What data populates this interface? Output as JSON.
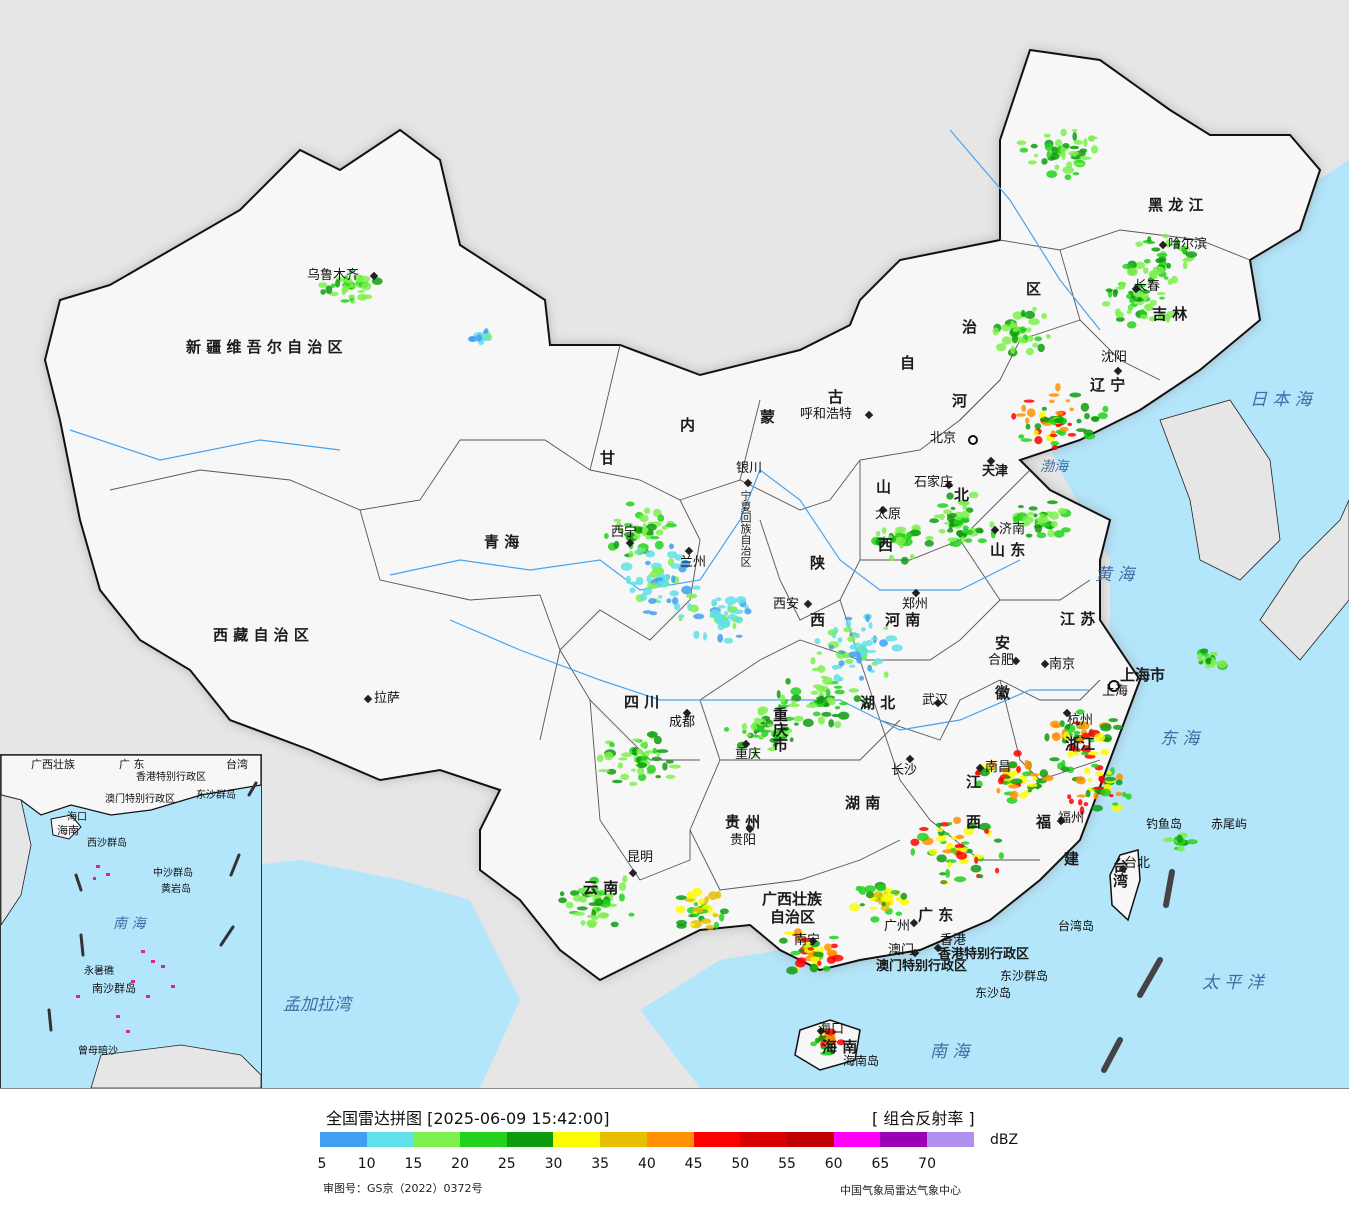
{
  "title": "全国雷达拼图 [2025-06-09 15:42:00]",
  "product": "[ 组合反射率 ]",
  "unit": "dBZ",
  "scale": {
    "colors": [
      "#3fa0f0",
      "#60e0e8",
      "#7cf04c",
      "#22d21c",
      "#0e9c0e",
      "#fcfc00",
      "#e6c000",
      "#ff9000",
      "#ff0000",
      "#d80000",
      "#c00000",
      "#ff00ff",
      "#9a00b4",
      "#b090ee"
    ],
    "ticks": [
      "5",
      "10",
      "15",
      "20",
      "25",
      "30",
      "35",
      "40",
      "45",
      "50",
      "55",
      "60",
      "65",
      "70"
    ]
  },
  "footer": {
    "approval": "审图号：GS京（2022）0372号",
    "agency": "中国气象局雷达气象中心"
  },
  "provinces": [
    {
      "id": "xinjiang",
      "text": "新 疆 维 吾 尔 自 治 区"
    },
    {
      "id": "xizang",
      "text": "西 藏 自 治 区"
    },
    {
      "id": "qinghai",
      "text": "青          海"
    },
    {
      "id": "gansu",
      "text": "甘"
    },
    {
      "id": "neimenggu-1",
      "text": "内"
    },
    {
      "id": "neimenggu-2",
      "text": "蒙"
    },
    {
      "id": "neimenggu-3",
      "text": "古"
    },
    {
      "id": "neimenggu-4",
      "text": "自"
    },
    {
      "id": "neimenggu-5",
      "text": "治"
    },
    {
      "id": "neimenggu-6",
      "text": "区"
    },
    {
      "id": "heilongjiang",
      "text": "黑   龙   江"
    },
    {
      "id": "jilin",
      "text": "吉   林"
    },
    {
      "id": "liaoning",
      "text": "辽  宁"
    },
    {
      "id": "hebei-1",
      "text": "河"
    },
    {
      "id": "hebei-2",
      "text": "北"
    },
    {
      "id": "shanxi-1",
      "text": "山"
    },
    {
      "id": "shanxi-2",
      "text": "西"
    },
    {
      "id": "shandong",
      "text": "山  东"
    },
    {
      "id": "henan",
      "text": "河  南"
    },
    {
      "id": "shaanxi-1",
      "text": "陕"
    },
    {
      "id": "shaanxi-2",
      "text": "西"
    },
    {
      "id": "ningxia",
      "text": "宁夏回族自治区"
    },
    {
      "id": "sichuan",
      "text": "四   川"
    },
    {
      "id": "chongqing",
      "text": "重庆市"
    },
    {
      "id": "hubei",
      "text": "湖   北"
    },
    {
      "id": "anhui",
      "text": "安"
    },
    {
      "id": "anhui-2",
      "text": "徽"
    },
    {
      "id": "jiangsu",
      "text": "江  苏"
    },
    {
      "id": "shanghai",
      "text": "上海市"
    },
    {
      "id": "zhejiang",
      "text": "浙江"
    },
    {
      "id": "jiangxi-1",
      "text": "江"
    },
    {
      "id": "jiangxi-2",
      "text": "西"
    },
    {
      "id": "hunan",
      "text": "湖   南"
    },
    {
      "id": "guizhou",
      "text": "贵   州"
    },
    {
      "id": "yunnan",
      "text": "云   南"
    },
    {
      "id": "guangxi-1",
      "text": "广西壮族"
    },
    {
      "id": "guangxi-2",
      "text": "自治区"
    },
    {
      "id": "guangdong",
      "text": "广   东"
    },
    {
      "id": "fujian-1",
      "text": "福"
    },
    {
      "id": "fujian-2",
      "text": "建"
    },
    {
      "id": "taiwan",
      "text": "台湾"
    },
    {
      "id": "hainan",
      "text": "海   南"
    },
    {
      "id": "hk",
      "text": "香港特别行政区"
    },
    {
      "id": "macau",
      "text": "澳门特别行政区"
    },
    {
      "id": "tianjin",
      "text": "天津"
    }
  ],
  "cities": [
    {
      "id": "urumqi",
      "text": "乌鲁木齐"
    },
    {
      "id": "lhasa",
      "text": "拉萨"
    },
    {
      "id": "xining",
      "text": "西宁"
    },
    {
      "id": "lanzhou",
      "text": "兰州"
    },
    {
      "id": "yinchuan",
      "text": "银川"
    },
    {
      "id": "hohhot",
      "text": "呼和浩特"
    },
    {
      "id": "harbin",
      "text": "哈尔滨"
    },
    {
      "id": "changchun",
      "text": "长春"
    },
    {
      "id": "shenyang",
      "text": "沈阳"
    },
    {
      "id": "beijing",
      "text": "北京"
    },
    {
      "id": "tianjin-city",
      "text": "天津"
    },
    {
      "id": "shijiazhuang",
      "text": "石家庄"
    },
    {
      "id": "taiyuan",
      "text": "太原"
    },
    {
      "id": "jinan",
      "text": "济南"
    },
    {
      "id": "zhengzhou",
      "text": "郑州"
    },
    {
      "id": "xian",
      "text": "西安"
    },
    {
      "id": "chengdu",
      "text": "成都"
    },
    {
      "id": "chongqing-city",
      "text": "重庆"
    },
    {
      "id": "wuhan",
      "text": "武汉"
    },
    {
      "id": "hefei",
      "text": "合肥"
    },
    {
      "id": "nanjing",
      "text": "南京"
    },
    {
      "id": "shanghai-city",
      "text": "上海"
    },
    {
      "id": "hangzhou",
      "text": "杭州"
    },
    {
      "id": "nanchang",
      "text": "南昌"
    },
    {
      "id": "changsha",
      "text": "长沙"
    },
    {
      "id": "guiyang",
      "text": "贵阳"
    },
    {
      "id": "kunming",
      "text": "昆明"
    },
    {
      "id": "nanning",
      "text": "南宁"
    },
    {
      "id": "guangzhou",
      "text": "广州"
    },
    {
      "id": "hongkong",
      "text": "香港"
    },
    {
      "id": "macau-city",
      "text": "澳门"
    },
    {
      "id": "fuzhou",
      "text": "福州"
    },
    {
      "id": "taipei",
      "text": "台北"
    },
    {
      "id": "haikou",
      "text": "海口"
    }
  ],
  "seas": [
    {
      "id": "japan-sea",
      "text": "日 本 海"
    },
    {
      "id": "yellow-sea",
      "text": "黄  海"
    },
    {
      "id": "east-sea",
      "text": "东  海"
    },
    {
      "id": "pacific",
      "text": "太   平   洋"
    },
    {
      "id": "south-sea",
      "text": "南     海"
    },
    {
      "id": "bengal",
      "text": "孟加拉湾"
    },
    {
      "id": "bohai",
      "text": "渤海"
    }
  ],
  "islands": [
    {
      "id": "diaoyu",
      "text": "钓鱼岛"
    },
    {
      "id": "chiwei",
      "text": "赤尾屿"
    },
    {
      "id": "taiwan-island",
      "text": "台湾岛"
    },
    {
      "id": "dongsha-islands",
      "text": "东沙群岛"
    },
    {
      "id": "dongsha-island",
      "text": "东沙岛"
    },
    {
      "id": "hainan-island",
      "text": "海南岛"
    }
  ],
  "inset": {
    "labels": [
      {
        "id": "inset-guangxi",
        "text": "广西壮族"
      },
      {
        "id": "inset-guangdong",
        "text": "广 东"
      },
      {
        "id": "inset-hk",
        "text": "香港特别行政区"
      },
      {
        "id": "inset-macau",
        "text": "澳门特别行政区"
      },
      {
        "id": "inset-taiwan",
        "text": "台湾"
      },
      {
        "id": "inset-dongsha",
        "text": "东沙群岛"
      },
      {
        "id": "inset-haikou",
        "text": "海口"
      },
      {
        "id": "inset-hainan",
        "text": "海南"
      },
      {
        "id": "inset-xisha",
        "text": "西沙群岛"
      },
      {
        "id": "inset-zhongsha",
        "text": "中沙群岛"
      },
      {
        "id": "inset-huangyan",
        "text": "黄岩岛"
      },
      {
        "id": "inset-nanhai",
        "text": "南  海"
      },
      {
        "id": "inset-yongshu",
        "text": "永暑礁"
      },
      {
        "id": "inset-nansha",
        "text": "南沙群岛"
      },
      {
        "id": "inset-zengmu",
        "text": "曾母暗沙"
      }
    ]
  }
}
